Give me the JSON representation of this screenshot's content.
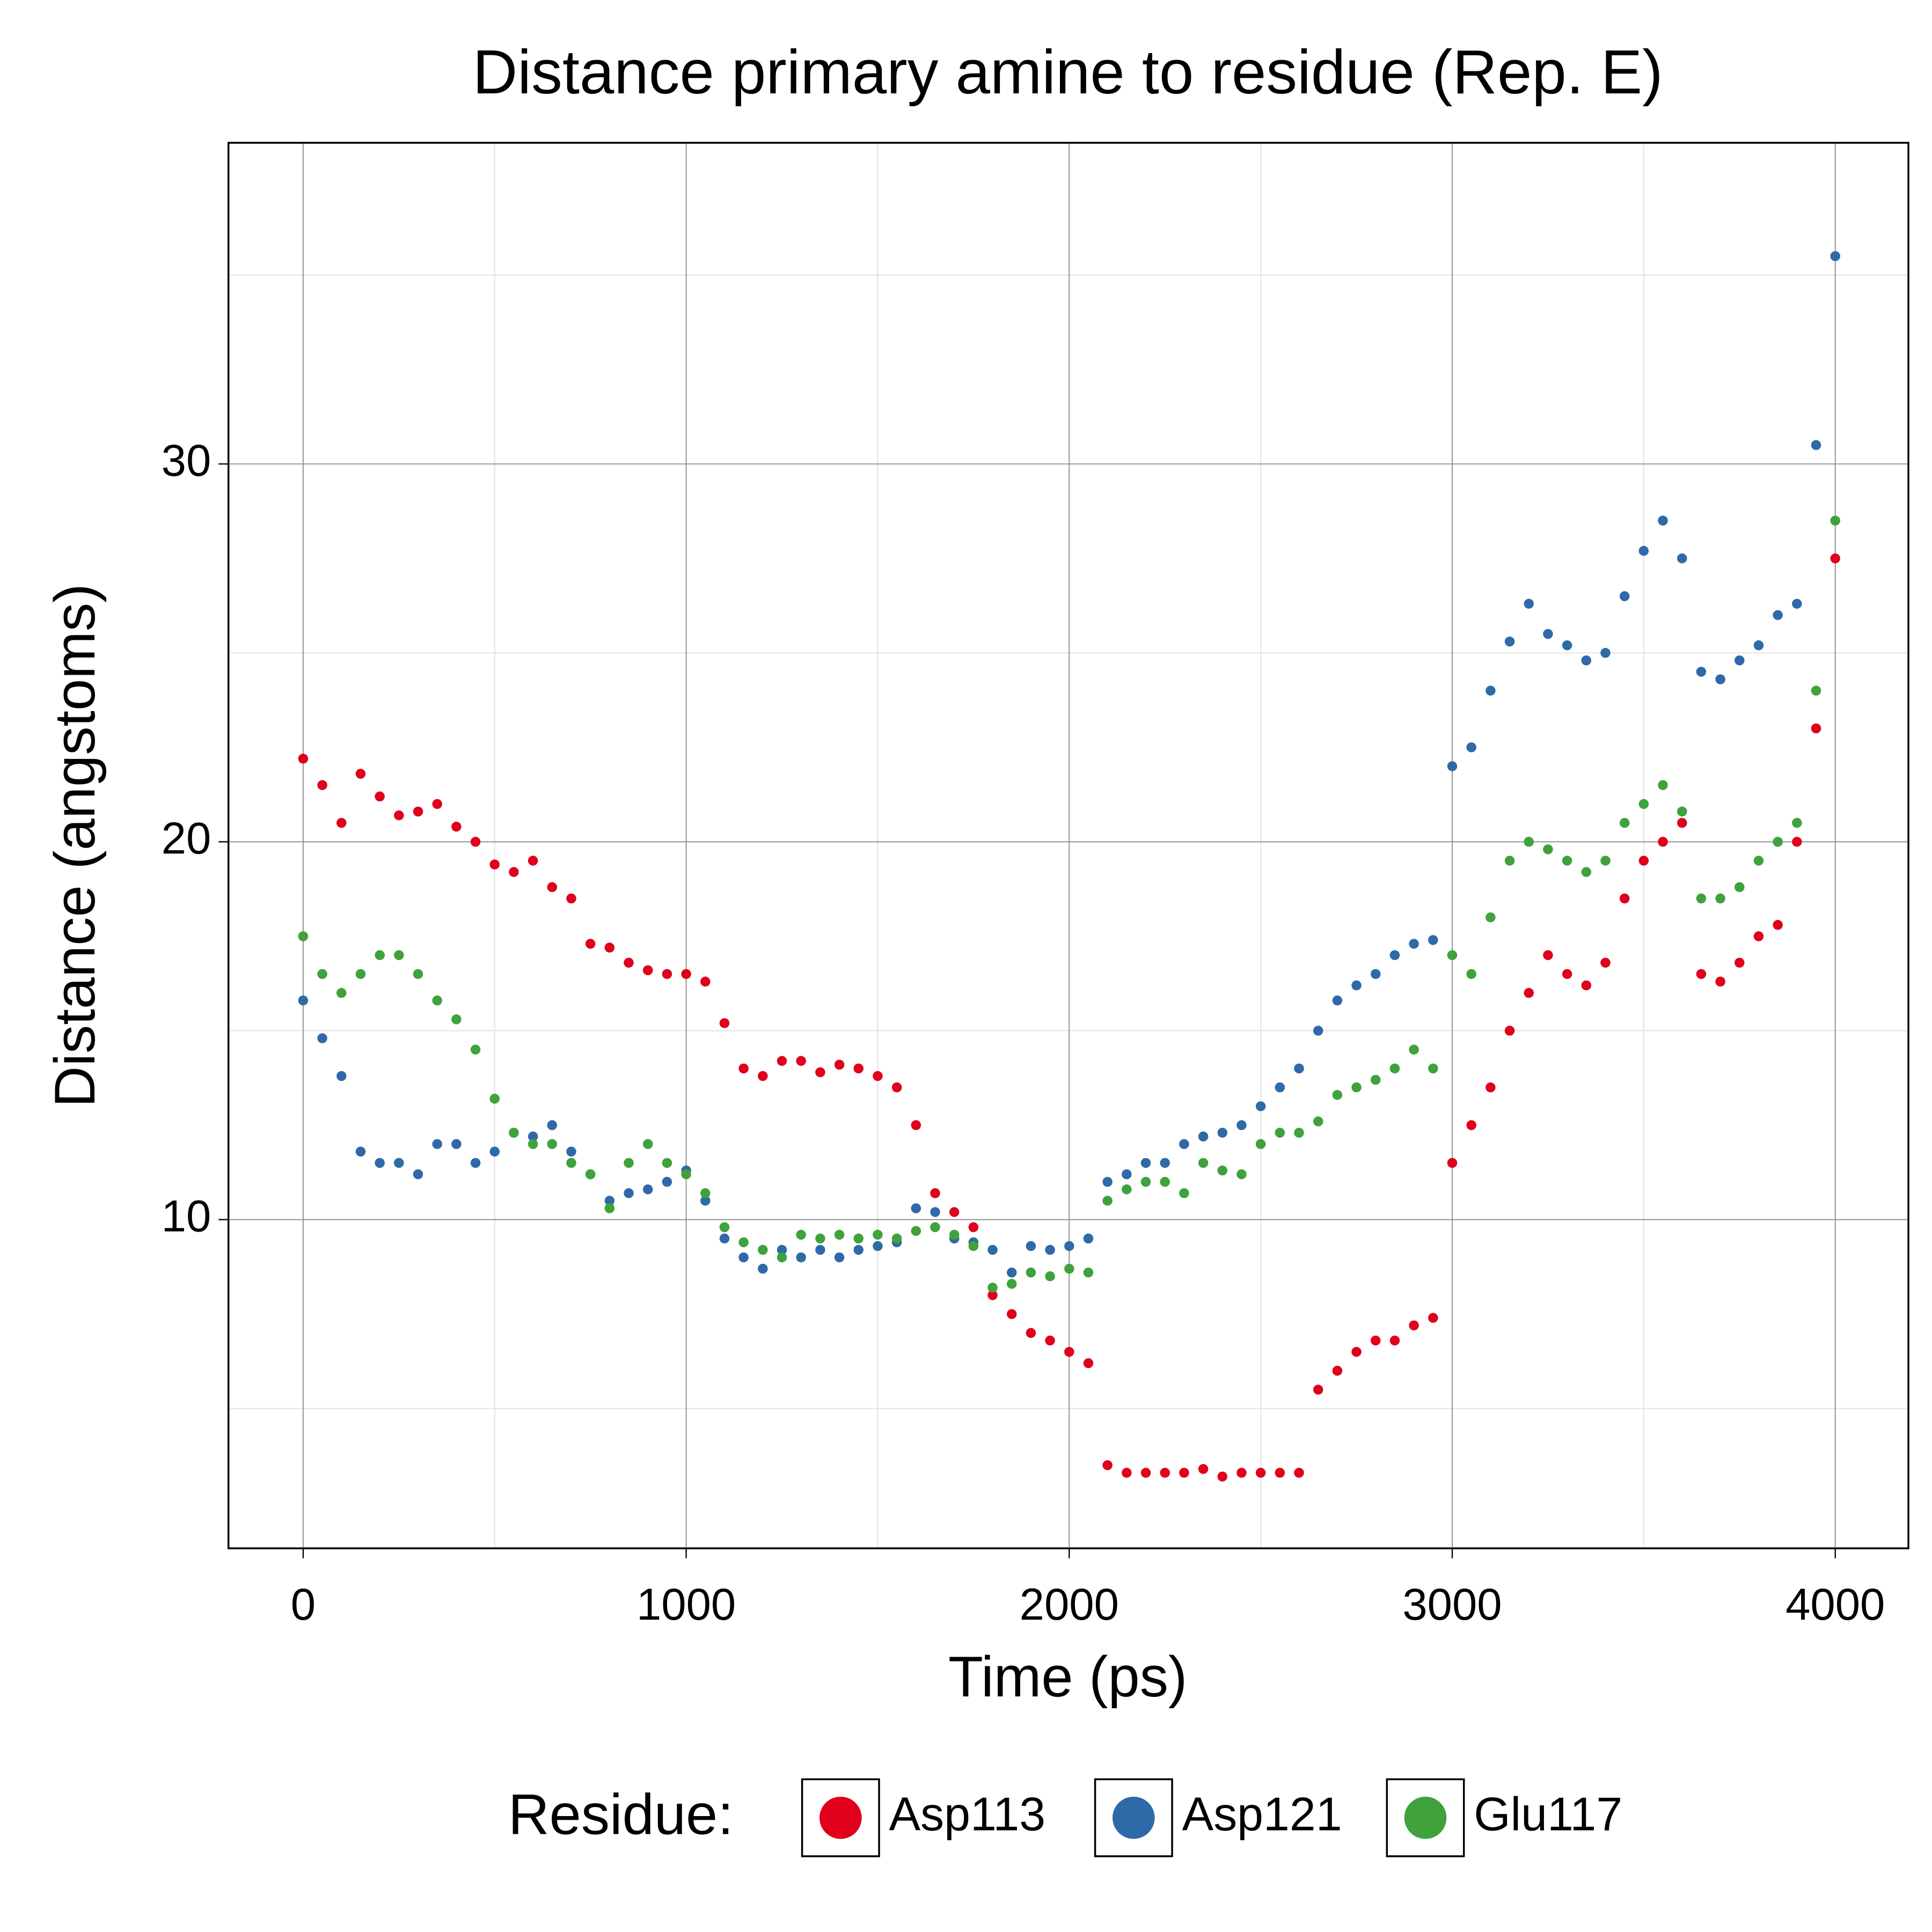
{
  "chart_data": {
    "type": "scatter",
    "title": "Distance primary amine to residue (Rep. E)",
    "x_label": "Time (ps)",
    "y_label": "Distance (angstoms)",
    "legend_title": "Residue:",
    "legend_position": "bottom",
    "grid": true,
    "xlim": [
      -195,
      4191
    ],
    "ylim": [
      1.3,
      38.5
    ],
    "xticks": [
      0,
      1000,
      2000,
      3000,
      4000
    ],
    "yticks": [
      10,
      20,
      30
    ],
    "minor_xticks": [
      500,
      1500,
      2500,
      3500
    ],
    "minor_yticks": [
      5,
      15,
      25,
      35
    ],
    "x": [
      0,
      50,
      100,
      150,
      200,
      250,
      300,
      350,
      400,
      450,
      500,
      550,
      600,
      650,
      700,
      750,
      800,
      850,
      900,
      950,
      1000,
      1050,
      1100,
      1150,
      1200,
      1250,
      1300,
      1350,
      1400,
      1450,
      1500,
      1550,
      1600,
      1650,
      1700,
      1750,
      1800,
      1850,
      1900,
      1950,
      2000,
      2050,
      2100,
      2150,
      2200,
      2250,
      2300,
      2350,
      2400,
      2450,
      2500,
      2550,
      2600,
      2650,
      2700,
      2750,
      2800,
      2850,
      2900,
      2950,
      3000,
      3050,
      3100,
      3150,
      3200,
      3250,
      3300,
      3350,
      3400,
      3450,
      3500,
      3550,
      3600,
      3650,
      3700,
      3750,
      3800,
      3850,
      3900,
      3950,
      4000
    ],
    "series": [
      {
        "name": "Asp113",
        "color": "#e0001b",
        "values": [
          22.2,
          21.5,
          20.5,
          21.8,
          21.2,
          20.7,
          20.8,
          21.0,
          20.4,
          20.0,
          19.4,
          19.2,
          19.5,
          18.8,
          18.5,
          17.3,
          17.2,
          16.8,
          16.6,
          16.5,
          16.5,
          16.3,
          15.2,
          14.0,
          13.8,
          14.2,
          14.2,
          13.9,
          14.1,
          14.0,
          13.8,
          13.5,
          12.5,
          10.7,
          10.2,
          9.8,
          8.0,
          7.5,
          7.0,
          6.8,
          6.5,
          6.2,
          3.5,
          3.3,
          3.3,
          3.3,
          3.3,
          3.4,
          3.2,
          3.3,
          3.3,
          3.3,
          3.3,
          5.5,
          6.0,
          6.5,
          6.8,
          6.8,
          7.2,
          7.4,
          11.5,
          12.5,
          13.5,
          15.0,
          16.0,
          17.0,
          16.5,
          16.2,
          16.8,
          18.5,
          19.5,
          20.0,
          20.5,
          16.5,
          16.3,
          16.8,
          17.5,
          17.8,
          20.0,
          23.0,
          27.5
        ]
      },
      {
        "name": "Asp121",
        "color": "#2e6aa8",
        "values": [
          15.8,
          14.8,
          13.8,
          11.8,
          11.5,
          11.5,
          11.2,
          12.0,
          12.0,
          11.5,
          11.8,
          12.3,
          12.2,
          12.5,
          11.8,
          11.2,
          10.5,
          10.7,
          10.8,
          11.0,
          11.3,
          10.5,
          9.5,
          9.0,
          8.7,
          9.2,
          9.0,
          9.2,
          9.0,
          9.2,
          9.3,
          9.4,
          10.3,
          10.2,
          9.5,
          9.4,
          9.2,
          8.6,
          9.3,
          9.2,
          9.3,
          9.5,
          11.0,
          11.2,
          11.5,
          11.5,
          12.0,
          12.2,
          12.3,
          12.5,
          13.0,
          13.5,
          14.0,
          15.0,
          15.8,
          16.2,
          16.5,
          17.0,
          17.3,
          17.4,
          22.0,
          22.5,
          24.0,
          25.3,
          26.3,
          25.5,
          25.2,
          24.8,
          25.0,
          26.5,
          27.7,
          28.5,
          27.5,
          24.5,
          24.3,
          24.8,
          25.2,
          26.0,
          26.3,
          30.5,
          35.5
        ]
      },
      {
        "name": "Glu117",
        "color": "#3fa23a",
        "values": [
          17.5,
          16.5,
          16.0,
          16.5,
          17.0,
          17.0,
          16.5,
          15.8,
          15.3,
          14.5,
          13.2,
          12.3,
          12.0,
          12.0,
          11.5,
          11.2,
          10.3,
          11.5,
          12.0,
          11.5,
          11.2,
          10.7,
          9.8,
          9.4,
          9.2,
          9.0,
          9.6,
          9.5,
          9.6,
          9.5,
          9.6,
          9.5,
          9.7,
          9.8,
          9.6,
          9.3,
          8.2,
          8.3,
          8.6,
          8.5,
          8.7,
          8.6,
          10.5,
          10.8,
          11.0,
          11.0,
          10.7,
          11.5,
          11.3,
          11.2,
          12.0,
          12.3,
          12.3,
          12.6,
          13.3,
          13.5,
          13.7,
          14.0,
          14.5,
          14.0,
          17.0,
          16.5,
          18.0,
          19.5,
          20.0,
          19.8,
          19.5,
          19.2,
          19.5,
          20.5,
          21.0,
          21.5,
          20.8,
          18.5,
          18.5,
          18.8,
          19.5,
          20.0,
          20.5,
          24.0,
          28.5
        ]
      }
    ]
  }
}
